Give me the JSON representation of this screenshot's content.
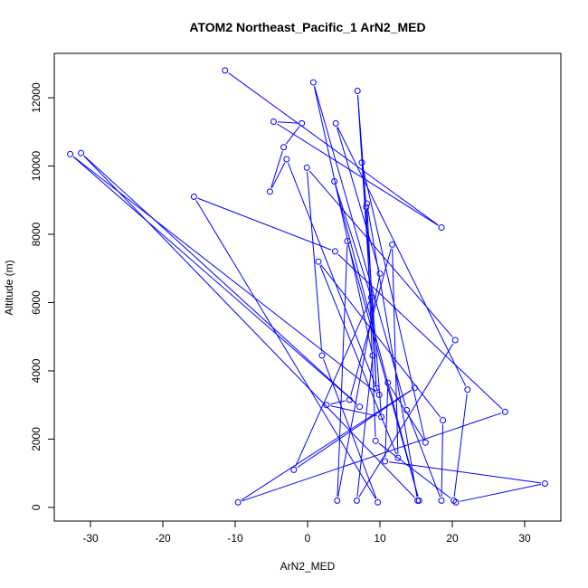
{
  "chart_data": {
    "type": "line",
    "title": "ATOM2 Northeast_Pacific_1 ArN2_MED",
    "xlabel": "ArN2_MED",
    "ylabel": "Altitude (m)",
    "xlim": [
      -35,
      35
    ],
    "ylim": [
      -400,
      13300
    ],
    "xticks": [
      -30,
      -20,
      -10,
      0,
      10,
      20,
      30
    ],
    "yticks": [
      0,
      2000,
      4000,
      6000,
      8000,
      10000,
      12000
    ],
    "grid": false,
    "markers": "open-circle",
    "color": "#0000ff",
    "series": [
      {
        "points": [
          [
            -11.4,
            12800
          ],
          [
            18.5,
            8200
          ],
          [
            -4.7,
            11300
          ],
          [
            -0.8,
            11250
          ],
          [
            -3.3,
            10550
          ],
          [
            -5.2,
            9250
          ],
          [
            -2.9,
            10200
          ],
          [
            9.9,
            3300
          ],
          [
            -32.8,
            10350
          ],
          [
            7.2,
            2950
          ],
          [
            -31.3,
            10380
          ],
          [
            15.2,
            200
          ],
          [
            8.2,
            8900
          ],
          [
            9.5,
            3500
          ],
          [
            6.9,
            12200
          ],
          [
            8.1,
            8800
          ],
          [
            9.4,
            1950
          ],
          [
            20.2,
            200
          ],
          [
            22.1,
            3450
          ],
          [
            3.9,
            11250
          ],
          [
            10.0,
            6850
          ],
          [
            4.1,
            200
          ],
          [
            5.5,
            7800
          ],
          [
            15.4,
            200
          ],
          [
            3.7,
            9550
          ],
          [
            8.8,
            6150
          ],
          [
            -1.9,
            1100
          ],
          [
            14.8,
            3500
          ],
          [
            -9.6,
            150
          ],
          [
            27.3,
            2800
          ],
          [
            3.8,
            7500
          ],
          [
            -15.7,
            9100
          ],
          [
            9.7,
            150
          ],
          [
            2.0,
            4450
          ],
          [
            -0.1,
            9950
          ],
          [
            20.4,
            4900
          ],
          [
            6.8,
            200
          ],
          [
            9.0,
            4450
          ],
          [
            0.8,
            12450
          ],
          [
            13.7,
            2850
          ],
          [
            18.5,
            200
          ],
          [
            18.7,
            2550
          ],
          [
            1.5,
            7200
          ],
          [
            12.5,
            1450
          ],
          [
            11.7,
            7700
          ],
          [
            5.8,
            3150
          ],
          [
            2.6,
            3000
          ],
          [
            10.2,
            2650
          ],
          [
            7.5,
            10100
          ],
          [
            16.3,
            1900
          ],
          [
            11.1,
            3650
          ],
          [
            10.7,
            1350
          ],
          [
            32.8,
            700
          ],
          [
            20.5,
            150
          ]
        ]
      }
    ]
  }
}
